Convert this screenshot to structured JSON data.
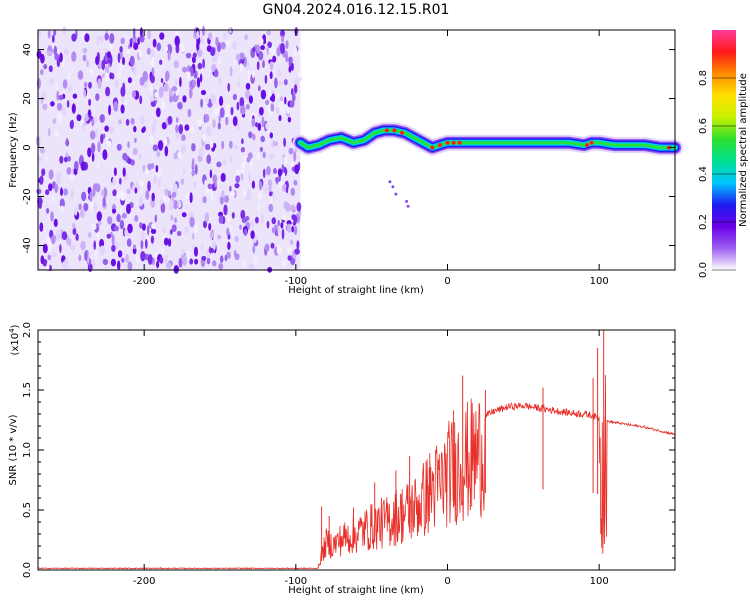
{
  "title": "GN04.2024.016.12.15.R01",
  "chart_data": [
    {
      "type": "heatmap",
      "xlabel": "Height of straight line (km)",
      "ylabel": "Frequency (Hz)",
      "xlim": [
        -270,
        150
      ],
      "ylim": [
        -50,
        48
      ],
      "xticks": [
        -200,
        -100,
        0,
        100
      ],
      "yticks": [
        -40,
        -20,
        0,
        20,
        40
      ],
      "colorbar": {
        "label": "Normalized spectral amplitude",
        "range": [
          0,
          1
        ],
        "ticks": [
          "0.0",
          "0.2",
          "0.4",
          "0.6",
          "0.8"
        ],
        "tick_values": [
          0,
          0.2,
          0.4,
          0.6,
          0.8
        ],
        "colors": [
          "#ffffff",
          "#9c5cf0",
          "#6a00e6",
          "#1c1cf0",
          "#00c8ff",
          "#00e090",
          "#2ee02e",
          "#c8f000",
          "#ffe000",
          "#ff8c00",
          "#ff1a1a",
          "#ff3a9a"
        ]
      },
      "noise_region_x": [
        -270,
        -97
      ],
      "signal_track": {
        "x": [
          -97,
          -92,
          -85,
          -78,
          -70,
          -62,
          -55,
          -48,
          -42,
          -35,
          -28,
          -22,
          -16,
          -10,
          -5,
          0,
          5,
          10,
          20,
          40,
          60,
          80,
          90,
          95,
          100,
          110,
          120,
          130,
          140,
          150
        ],
        "y": [
          2,
          0,
          1,
          3,
          4,
          2,
          3,
          6,
          7,
          7,
          6,
          4,
          2,
          0,
          1,
          2,
          2,
          2,
          2,
          2,
          2,
          2,
          1,
          2,
          2,
          1,
          1,
          1,
          0,
          0
        ]
      },
      "stray_points": {
        "x": [
          -38,
          -36,
          -34,
          -27,
          -26
        ],
        "y": [
          -14,
          -16,
          -19,
          -22,
          -24
        ]
      }
    },
    {
      "type": "line",
      "xlabel": "Height of straight line (km)",
      "ylabel": "SNR (10 * v/v)",
      "scale_label": "(x10",
      "scale_exp": "4",
      "scale_close": ")",
      "xlim": [
        -270,
        150
      ],
      "ylim": [
        0,
        2.0
      ],
      "xticks": [
        -200,
        -100,
        0,
        100
      ],
      "yticks": [
        "0.0",
        "0.5",
        "1.0",
        "1.5",
        "2.0"
      ],
      "ytick_values": [
        0,
        0.5,
        1.0,
        1.5,
        2.0
      ],
      "color": "#e8302a",
      "series": [
        {
          "x": [
            -270,
            -200,
            -150,
            -100,
            -90,
            -85,
            -80,
            -75,
            -70,
            -65,
            -60,
            -55,
            -50,
            -45,
            -40,
            -35,
            -30,
            -25,
            -20,
            -15,
            -10,
            -5,
            0,
            5,
            10,
            15,
            20,
            25,
            30,
            40,
            50,
            55,
            60,
            65,
            70,
            80,
            90,
            95,
            100,
            101,
            102,
            103,
            104,
            105,
            110,
            120,
            130,
            140,
            150
          ],
          "y": [
            0.01,
            0.01,
            0.01,
            0.01,
            0.02,
            0.06,
            0.28,
            0.26,
            0.32,
            0.35,
            0.38,
            0.42,
            0.45,
            0.48,
            0.5,
            0.55,
            0.58,
            0.62,
            0.66,
            0.75,
            0.85,
            0.88,
            1.0,
            1.05,
            1.1,
            1.15,
            1.2,
            1.28,
            1.32,
            1.36,
            1.37,
            1.36,
            1.35,
            1.34,
            1.33,
            1.31,
            1.3,
            1.29,
            1.26,
            0.05,
            1.9,
            1.25,
            0.9,
            1.24,
            1.23,
            1.21,
            1.19,
            1.16,
            1.13
          ]
        }
      ],
      "spikes": [
        {
          "x": -83,
          "y": 0.53
        },
        {
          "x": -78,
          "y": 0.45
        },
        {
          "x": -62,
          "y": 0.52
        },
        {
          "x": -48,
          "y": 0.73
        },
        {
          "x": -34,
          "y": 0.83
        },
        {
          "x": -25,
          "y": 0.95
        },
        {
          "x": -12,
          "y": 0.85
        },
        {
          "x": 4,
          "y": 1.33
        },
        {
          "x": 10,
          "y": 1.62
        },
        {
          "x": 15,
          "y": 0.5
        },
        {
          "x": 25,
          "y": 1.5
        },
        {
          "x": 63,
          "y": 1.52
        },
        {
          "x": 96,
          "y": 1.6
        },
        {
          "x": 99,
          "y": 1.85
        },
        {
          "x": 103,
          "y": 2.0
        }
      ]
    }
  ]
}
